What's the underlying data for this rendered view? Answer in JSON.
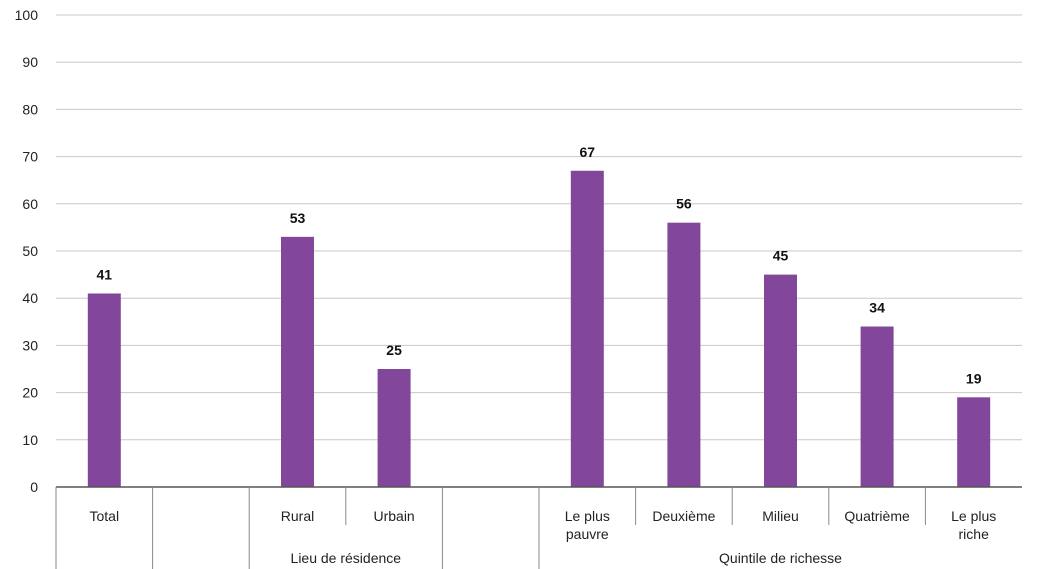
{
  "chart_data": {
    "type": "bar",
    "title": "",
    "xlabel": "",
    "ylabel": "",
    "ylim": [
      0,
      100
    ],
    "yticks": [
      0,
      10,
      20,
      30,
      40,
      50,
      60,
      70,
      80,
      90,
      100
    ],
    "grid": true,
    "bar_color": "#82479b",
    "categories": [
      {
        "label": [
          "Total"
        ],
        "value": 41
      },
      {
        "label": [],
        "value": null
      },
      {
        "label": [
          "Rural"
        ],
        "value": 53
      },
      {
        "label": [
          "Urbain"
        ],
        "value": 25
      },
      {
        "label": [],
        "value": null
      },
      {
        "label": [
          "Le plus",
          "pauvre"
        ],
        "value": 67
      },
      {
        "label": [
          "Deuxième"
        ],
        "value": 56
      },
      {
        "label": [
          "Milieu"
        ],
        "value": 45
      },
      {
        "label": [
          "Quatrième"
        ],
        "value": 34
      },
      {
        "label": [
          "Le plus",
          "riche"
        ],
        "value": 19
      }
    ],
    "groups": [
      {
        "label": "",
        "start": 0,
        "end": 0
      },
      {
        "label": "",
        "start": 1,
        "end": 1
      },
      {
        "label": "Lieu de résidence",
        "start": 2,
        "end": 3
      },
      {
        "label": "",
        "start": 4,
        "end": 4
      },
      {
        "label": "Quintile de richesse",
        "start": 5,
        "end": 9
      }
    ]
  }
}
